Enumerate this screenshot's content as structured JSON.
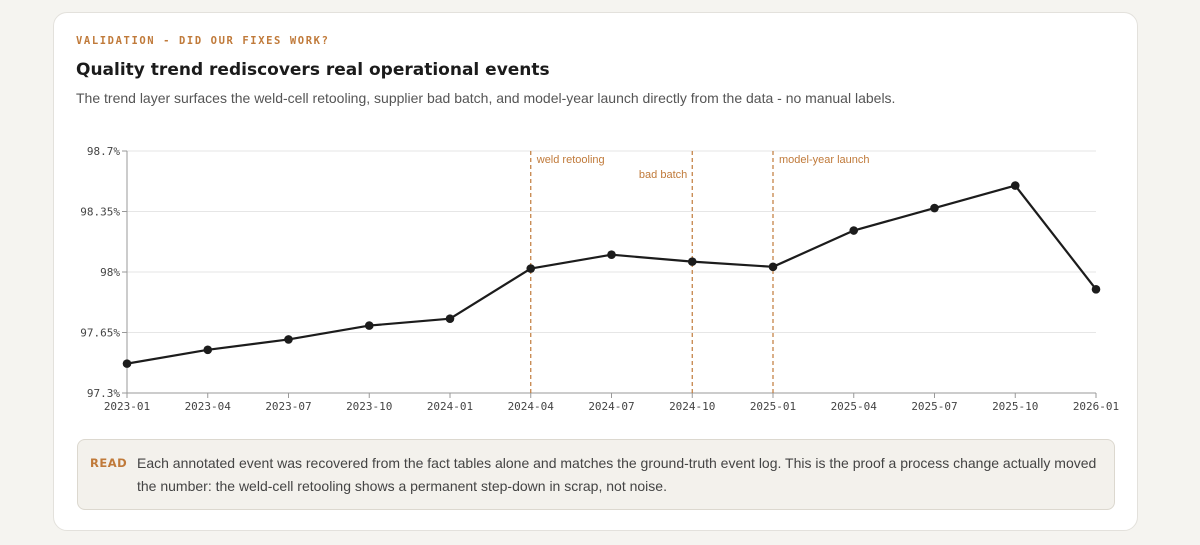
{
  "card": {
    "eyebrow": "VALIDATION - DID OUR FIXES WORK?",
    "title": "Quality trend rediscovers real operational events",
    "subtitle": "The trend layer surfaces the weld-cell retooling, supplier bad batch, and model-year launch directly from the data - no manual labels."
  },
  "chart_data": {
    "type": "line",
    "x": [
      "2023-01",
      "2023-04",
      "2023-07",
      "2023-10",
      "2024-01",
      "2024-04",
      "2024-07",
      "2024-10",
      "2025-01",
      "2025-04",
      "2025-07",
      "2025-10",
      "2026-01"
    ],
    "series": [
      {
        "values": [
          97.47,
          97.55,
          97.61,
          97.69,
          97.73,
          98.02,
          98.1,
          98.06,
          98.03,
          98.24,
          98.37,
          98.5,
          97.9
        ]
      }
    ],
    "ylim": [
      97.3,
      98.7
    ],
    "yticks": [
      {
        "value": 98.7,
        "label": "98.7%"
      },
      {
        "value": 98.35,
        "label": "98.35%"
      },
      {
        "value": 98.0,
        "label": "98%"
      },
      {
        "value": 97.65,
        "label": "97.65%"
      },
      {
        "value": 97.3,
        "label": "97.3%"
      }
    ],
    "annotations": [
      {
        "x": "2024-04",
        "label": "weld retooling",
        "label_side": "right"
      },
      {
        "x": "2024-10",
        "label": "bad batch",
        "label_side": "left"
      },
      {
        "x": "2025-01",
        "label": "model-year launch",
        "label_side": "right"
      }
    ],
    "grid": true,
    "line_color": "#1c1c1c",
    "annotation_color": "#c07a3a"
  },
  "read": {
    "label": "READ",
    "text": "Each annotated event was recovered from the fact tables alone and matches the ground-truth event log. This is the proof a process change actually moved the number: the weld-cell retooling shows a permanent step-down in scrap, not noise."
  }
}
